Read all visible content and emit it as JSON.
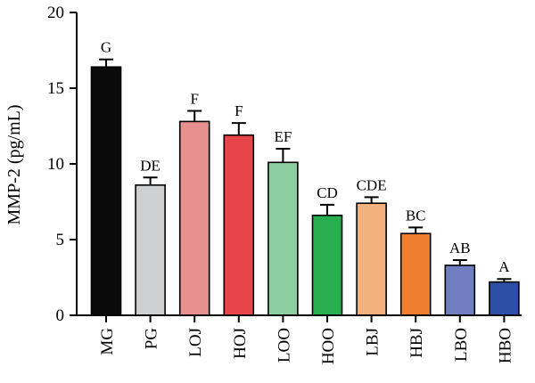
{
  "chart_data": {
    "type": "bar",
    "title": "",
    "xlabel": "",
    "ylabel": "MMP-2 (pg/mL)",
    "ylim": [
      0,
      20
    ],
    "yticks": [
      0,
      5,
      10,
      15,
      20
    ],
    "grid": false,
    "categories": [
      "MG",
      "PG",
      "LOJ",
      "HOJ",
      "LOO",
      "HOO",
      "LBJ",
      "HBJ",
      "LBO",
      "HBO"
    ],
    "values": [
      16.4,
      8.6,
      12.8,
      11.9,
      10.1,
      6.6,
      7.4,
      5.4,
      3.3,
      2.2
    ],
    "errors": [
      0.5,
      0.5,
      0.7,
      0.8,
      0.9,
      0.7,
      0.4,
      0.4,
      0.35,
      0.2
    ],
    "significance_labels": [
      "G",
      "DE",
      "F",
      "F",
      "EF",
      "CD",
      "CDE",
      "BC",
      "AB",
      "A"
    ],
    "colors": [
      "#0a0a0a",
      "#cfd0d2",
      "#e8908f",
      "#e8454a",
      "#8dcf9e",
      "#28ae4f",
      "#f3b17e",
      "#ef7f2f",
      "#6f7fc0",
      "#2d4fa5"
    ]
  }
}
